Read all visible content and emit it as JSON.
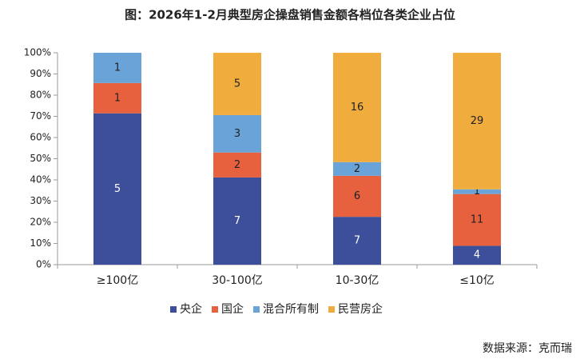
{
  "chart_data": {
    "type": "bar",
    "stacking": "percent",
    "title": "图：2026年1-2月典型房企操盘销售金额各档位各类企业占位",
    "categories": [
      "≥100亿",
      "30-100亿",
      "10-30亿",
      "≤10亿"
    ],
    "series": [
      {
        "name": "央企",
        "color": "#3d4f9a",
        "values": [
          5,
          7,
          7,
          4
        ]
      },
      {
        "name": "国企",
        "color": "#e8613f",
        "values": [
          1,
          2,
          6,
          11
        ]
      },
      {
        "name": "混合所有制",
        "color": "#6aa3d8",
        "values": [
          1,
          3,
          2,
          1
        ]
      },
      {
        "name": "民营房企",
        "color": "#f0ac3c",
        "values": [
          0,
          5,
          16,
          29
        ]
      }
    ],
    "ylim": [
      0,
      100
    ],
    "yticks": [
      {
        "value": 0,
        "label": "0%"
      },
      {
        "value": 10,
        "label": "10%"
      },
      {
        "value": 20,
        "label": "20%"
      },
      {
        "value": 30,
        "label": "30%"
      },
      {
        "value": 40,
        "label": "40%"
      },
      {
        "value": 50,
        "label": "50%"
      },
      {
        "value": 60,
        "label": "60%"
      },
      {
        "value": 70,
        "label": "70%"
      },
      {
        "value": 80,
        "label": "80%"
      },
      {
        "value": 90,
        "label": "90%"
      },
      {
        "value": 100,
        "label": "100%"
      }
    ],
    "grid": false,
    "legend": "bottom",
    "source": "数据来源：克而瑞"
  }
}
